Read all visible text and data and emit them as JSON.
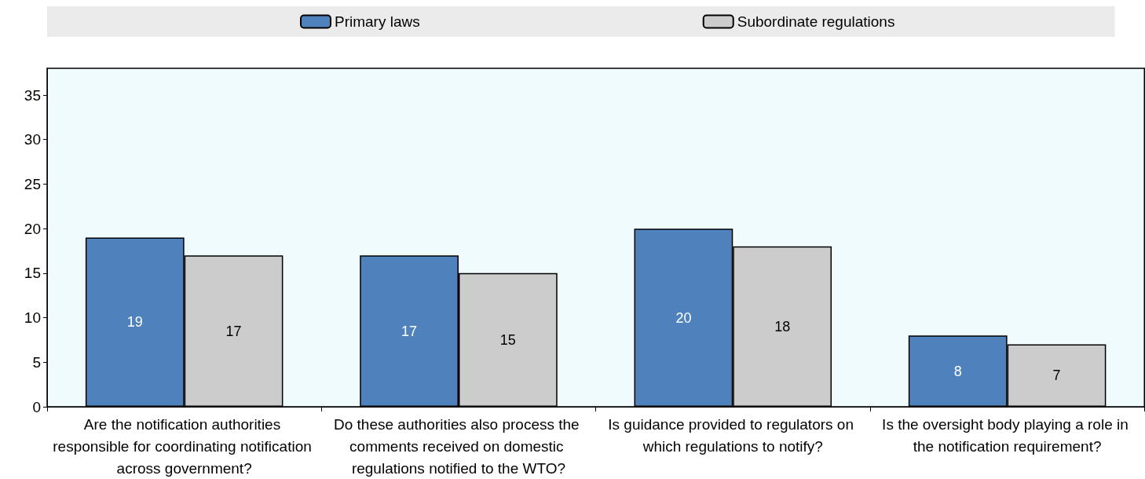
{
  "chart_data": {
    "type": "bar",
    "categories": [
      "Are the notification authorities responsible for coordinating notification across government?",
      "Do these authorities also process the comments received on domestic regulations notified to the WTO?",
      "Is guidance provided to regulators on which regulations to notify?",
      "Is the oversight body playing a role in the notification requirement?"
    ],
    "series": [
      {
        "name": "Primary laws",
        "color": "#4f81bd",
        "values": [
          19,
          17,
          20,
          8
        ]
      },
      {
        "name": "Subordinate regulations",
        "color": "#cccccc",
        "values": [
          17,
          15,
          18,
          7
        ]
      }
    ],
    "ylim": [
      0,
      38
    ],
    "yticks": [
      0,
      5,
      10,
      15,
      20,
      25,
      30,
      35
    ],
    "data_labels": true,
    "grid": false,
    "legend": "top"
  }
}
